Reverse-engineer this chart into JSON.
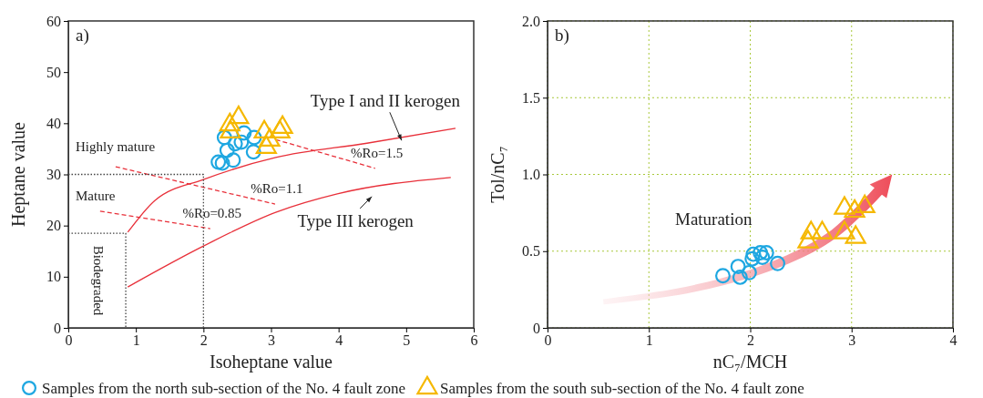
{
  "chart_data": [
    {
      "type": "scatter",
      "title": "a)",
      "xlabel": "Isoheptane value",
      "ylabel": "Heptane value",
      "xlim": [
        0,
        6
      ],
      "ylim": [
        0,
        60
      ],
      "xticks": [
        0,
        1,
        2,
        3,
        4,
        5,
        6
      ],
      "yticks": [
        0,
        10,
        20,
        30,
        40,
        50,
        60
      ],
      "grid": false,
      "legend": "bottom",
      "series": [
        {
          "name": "Type I and II kerogen",
          "type": "line",
          "color": "#e8303a",
          "marker": "none",
          "line_style": "solid",
          "x": [
            0.88,
            1.28,
            2.0,
            3.07,
            4.42,
            5.73
          ],
          "values": [
            18.7,
            24.9,
            29.0,
            33.3,
            36.1,
            39.0
          ]
        },
        {
          "name": "Type III kerogen",
          "type": "line",
          "color": "#e8303a",
          "marker": "none",
          "line_style": "solid",
          "x": [
            0.88,
            2.0,
            3.07,
            3.98,
            5.66
          ],
          "values": [
            8.0,
            16.0,
            22.6,
            26.2,
            29.4
          ]
        },
        {
          "name": "%Ro=1.5",
          "type": "line",
          "color": "#e8303a",
          "marker": "none",
          "line_style": "dashed",
          "x": [
            3.07,
            4.54
          ],
          "values": [
            36.8,
            31.2
          ]
        },
        {
          "name": "%Ro=1.1",
          "type": "line",
          "color": "#e8303a",
          "marker": "none",
          "line_style": "dashed",
          "x": [
            0.7,
            3.06
          ],
          "values": [
            31.5,
            24.2
          ]
        },
        {
          "name": "%Ro=0.85",
          "type": "line",
          "color": "#e8303a",
          "marker": "none",
          "line_style": "dashed",
          "x": [
            0.47,
            2.1
          ],
          "values": [
            22.8,
            19.4
          ]
        },
        {
          "type": "line",
          "color": "#444444",
          "marker": "none",
          "line_style": "dotted",
          "x": [
            0,
            2,
            2
          ],
          "values": [
            30,
            30,
            0
          ]
        },
        {
          "type": "line",
          "color": "#444444",
          "marker": "none",
          "line_style": "dotted",
          "x": [
            0,
            0.85,
            0.85
          ],
          "values": [
            18.5,
            18.5,
            0
          ]
        },
        {
          "name": "Samples from the north sub-section of the No. 4 fault zone",
          "color": "#1ea7e1",
          "marker": "circle",
          "x": [
            2.22,
            2.28,
            2.35,
            2.44,
            2.31,
            2.47,
            2.6,
            2.56,
            2.75,
            2.74
          ],
          "values": [
            32.4,
            32.2,
            34.7,
            32.8,
            37.2,
            36.0,
            38.1,
            36.3,
            37.2,
            34.4
          ]
        },
        {
          "name": "Samples from the south sub-section of the No. 4 fault zone",
          "color": "#f5b800",
          "marker": "triangle",
          "x": [
            2.39,
            2.52,
            2.4,
            2.9,
            3.17,
            2.93,
            2.98,
            3.13
          ],
          "values": [
            39.7,
            41.1,
            38.3,
            38.3,
            39.2,
            35.3,
            36.7,
            38.3
          ]
        }
      ],
      "annotations": [
        "Highly mature",
        "Mature",
        "Biodegraded"
      ]
    },
    {
      "type": "scatter",
      "title": "b)",
      "xlabel": "nC₇/MCH",
      "ylabel": "Tol/nC₇",
      "xlim": [
        0,
        4
      ],
      "ylim": [
        0,
        2
      ],
      "xticks": [
        0,
        1,
        2,
        3,
        4
      ],
      "yticks": [
        0,
        0.5,
        {
          "value": 1,
          "label": "1.0"
        },
        1.5,
        {
          "value": 2,
          "label": "2.0"
        }
      ],
      "grid": true,
      "legend": false,
      "series": [
        {
          "color": "#1ea7e1",
          "marker": "circle",
          "x": [
            1.73,
            1.88,
            1.9,
            1.99,
            2.03,
            2.02,
            2.1,
            2.16,
            2.12,
            2.27
          ],
          "values": [
            0.34,
            0.4,
            0.33,
            0.36,
            0.48,
            0.45,
            0.49,
            0.49,
            0.46,
            0.42
          ]
        },
        {
          "color": "#f5b800",
          "marker": "triangle",
          "x": [
            2.6,
            2.71,
            2.57,
            2.93,
            3.03,
            3.13,
            2.93,
            3.04
          ],
          "values": [
            0.62,
            0.62,
            0.56,
            0.78,
            0.76,
            0.79,
            0.62,
            0.59
          ]
        }
      ],
      "annotations": [
        "Maturation"
      ]
    }
  ]
}
